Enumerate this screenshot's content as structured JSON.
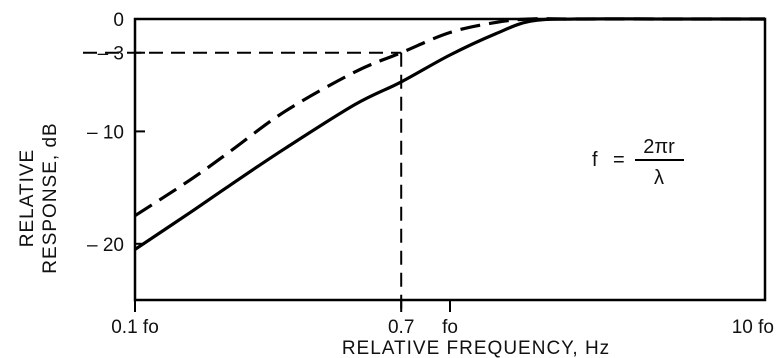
{
  "chart_data": {
    "type": "line",
    "xlabel": "RELATIVE FREQUENCY, Hz",
    "ylabel_lines": [
      "RELATIVE",
      "RESPONSE, dB"
    ],
    "x_scale": "log",
    "xlim": [
      0.1,
      10
    ],
    "ylim": [
      -25,
      0
    ],
    "x_ticks": [
      {
        "value": 0.1,
        "label": "0.1 fo"
      },
      {
        "value": 0.7,
        "label": "0.7"
      },
      {
        "value": 1.0,
        "label": "fo"
      },
      {
        "value": 10,
        "label": "10 fo"
      }
    ],
    "y_ticks": [
      {
        "value": 0,
        "label": "0"
      },
      {
        "value": -3,
        "label": "– 3"
      },
      {
        "value": -10,
        "label": "– 10"
      },
      {
        "value": -20,
        "label": "– 20"
      }
    ],
    "series": [
      {
        "style": "solid",
        "color": "#000000",
        "x": [
          0.1,
          0.15,
          0.2,
          0.3,
          0.5,
          0.7,
          1.0,
          1.4,
          1.8,
          2.5,
          5,
          10
        ],
        "y": [
          -20.5,
          -17.2,
          -14.8,
          -11.5,
          -7.6,
          -5.6,
          -3.2,
          -1.3,
          -0.2,
          0,
          0,
          0
        ]
      },
      {
        "style": "dashed",
        "color": "#000000",
        "x": [
          0.1,
          0.15,
          0.2,
          0.3,
          0.5,
          0.7,
          1.0,
          1.4,
          1.8,
          2.5,
          5,
          10
        ],
        "y": [
          -17.5,
          -14.3,
          -11.8,
          -8.2,
          -4.7,
          -3.0,
          -1.2,
          -0.3,
          0,
          0,
          0,
          0
        ]
      }
    ],
    "reference_lines": [
      {
        "axis": "y",
        "value": -3,
        "style": "dashed"
      },
      {
        "axis": "x",
        "value": 0.7,
        "style": "dashed"
      }
    ],
    "annotation": {
      "lhs": "f",
      "numerator": "2πr",
      "denominator": "λ"
    }
  }
}
